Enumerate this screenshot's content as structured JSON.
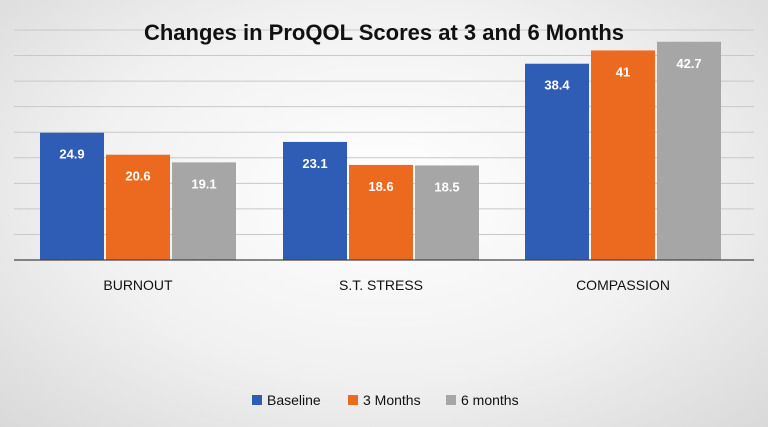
{
  "chart_data": {
    "type": "bar",
    "title": "Changes in ProQOL Scores at 3 and 6 Months",
    "categories": [
      "BURNOUT",
      "S.T. STRESS",
      "COMPASSION"
    ],
    "series": [
      {
        "name": "Baseline",
        "values": [
          24.9,
          23.1,
          38.4
        ],
        "labels": [
          "24.9",
          "23.1",
          "38.4"
        ],
        "color": "#2f5cb5"
      },
      {
        "name": "3 Months",
        "values": [
          20.6,
          18.6,
          41
        ],
        "labels": [
          "20.6",
          "18.6",
          "41"
        ],
        "color": "#ec6a1f"
      },
      {
        "name": "6 months",
        "values": [
          19.1,
          18.5,
          42.7
        ],
        "labels": [
          "19.1",
          "18.5",
          "42.7"
        ],
        "color": "#a6a6a6"
      }
    ],
    "xlabel": "",
    "ylabel": "",
    "ylim": [
      0,
      45
    ],
    "grid": true,
    "legend": "bottom"
  }
}
